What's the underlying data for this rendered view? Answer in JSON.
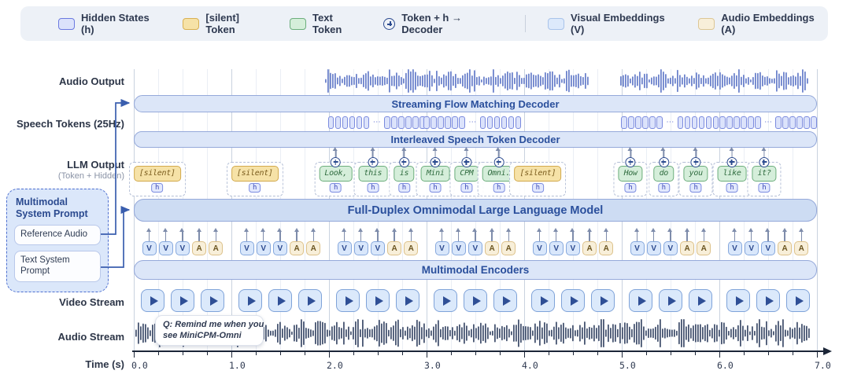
{
  "legend": {
    "items": [
      {
        "label": "Hidden States (h)",
        "swatch": "hidden"
      },
      {
        "label": "[silent] Token",
        "swatch": "silent"
      },
      {
        "label": "Text Token",
        "swatch": "text"
      },
      {
        "label": "Token + h → Decoder",
        "swatch": "plus"
      },
      {
        "label": "Visual Embeddings (V)",
        "swatch": "visual",
        "divider_before": true
      },
      {
        "label": "Audio Embeddings (A)",
        "swatch": "audio"
      }
    ]
  },
  "row_labels": {
    "audio_output": "Audio Output",
    "speech_tokens": "Speech Tokens (25Hz)",
    "llm_output": "LLM Output",
    "llm_output_sub": "(Token + Hidden)",
    "video_stream": "Video Stream",
    "audio_stream": "Audio Stream",
    "time": "Time (s)"
  },
  "bars": {
    "flow_decoder": "Streaming Flow Matching Decoder",
    "speech_decoder": "Interleaved Speech Token Decoder",
    "llm": "Full-Duplex Omnimodal Large Language Model",
    "encoders": "Multimodal Encoders"
  },
  "sidebar": {
    "title": "Multimodal System Prompt",
    "items": [
      "Reference Audio",
      "Text System Prompt"
    ]
  },
  "hidden_label": "h",
  "llm_tokens": [
    {
      "text": "[silent]",
      "type": "silent",
      "t": 0.24,
      "plus": false
    },
    {
      "text": "[silent]",
      "type": "silent",
      "t": 1.24,
      "plus": false
    },
    {
      "text": "Look,",
      "type": "text",
      "t": 2.07,
      "plus": true
    },
    {
      "text": "this",
      "type": "text",
      "t": 2.45,
      "plus": true
    },
    {
      "text": "is",
      "type": "text",
      "t": 2.77,
      "plus": true
    },
    {
      "text": "Mini",
      "type": "text",
      "t": 3.09,
      "plus": true
    },
    {
      "text": "CPM",
      "type": "text",
      "t": 3.41,
      "plus": true
    },
    {
      "text": "Omni.",
      "type": "text",
      "t": 3.74,
      "plus": true
    },
    {
      "text": "[silent]",
      "type": "silent",
      "t": 4.14,
      "plus": false
    },
    {
      "text": "How",
      "type": "text",
      "t": 5.09,
      "plus": true
    },
    {
      "text": "do",
      "type": "text",
      "t": 5.43,
      "plus": true
    },
    {
      "text": "you",
      "type": "text",
      "t": 5.76,
      "plus": true
    },
    {
      "text": "like",
      "type": "text",
      "t": 6.13,
      "plus": true
    },
    {
      "text": "it?",
      "type": "text",
      "t": 6.46,
      "plus": true
    }
  ],
  "speech_token_groups": [
    {
      "start": 2.05,
      "end": 2.93
    },
    {
      "start": 3.04,
      "end": 3.9
    },
    {
      "start": 5.06,
      "end": 5.93
    },
    {
      "start": 6.07,
      "end": 6.93
    }
  ],
  "speech_group": {
    "boxes_per_side": 6,
    "dots": "⋯"
  },
  "audio_output_segments": [
    {
      "start": 1.96,
      "end": 4.67
    },
    {
      "start": 4.98,
      "end": 6.93
    }
  ],
  "audio_stream_segments": [
    {
      "start": 0.02,
      "end": 6.93
    }
  ],
  "bubble": {
    "text_lines": [
      "Q: Remind me when you",
      "see MiniCPM-Omni"
    ]
  },
  "embeddings": {
    "pattern": [
      "V",
      "V",
      "V",
      "A",
      "A"
    ],
    "seconds": 7
  },
  "video": {
    "per_second": 3,
    "seconds": 7
  },
  "axis": {
    "ticks": [
      "0.0",
      "1.0",
      "2.0",
      "3.0",
      "4.0",
      "5.0",
      "6.0",
      "7.0"
    ],
    "minor_per_major": 3
  },
  "colors": {
    "accent_navy": "#2b4a8f",
    "bar_fill": "#dce6f8",
    "bar_fill_dark": "#cddcf3",
    "bar_border": "#95a9da",
    "grid_minor": "#eaeef5",
    "grid_major": "#c9d2df",
    "wave_output": "#6d83cc",
    "wave_input": "#475571",
    "silent_fill": "#f6e2a7",
    "silent_border": "#d2a94c",
    "text_fill": "#d5eeda",
    "text_border": "#6cae7c",
    "hidden_fill": "#e3e9fd",
    "hidden_border": "#7b8ce0",
    "visual_fill": "#d9e7fb",
    "visual_border": "#86a8dd",
    "audio_fill": "#f8efd9",
    "audio_border": "#dcc18a",
    "connector": "#3a5eae",
    "legend_bg": "#edf1f7"
  }
}
